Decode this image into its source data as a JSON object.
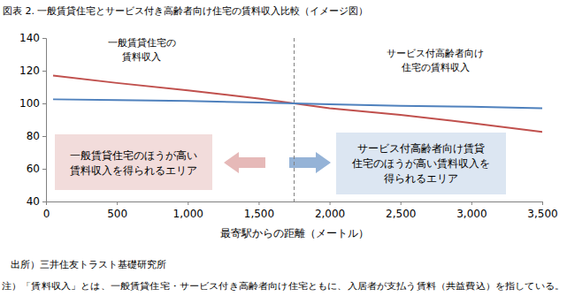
{
  "chart_data": {
    "type": "line",
    "title": "図表 2. 一般賃貸住宅とサービス付き高齢者向け住宅の賃料収入比較（イメージ図）",
    "x_label": "最寄駅からの距離（メートル）",
    "source": "出所）三井住友トラスト基礎研究所",
    "note": "注）「賃料収入」とは、一般賃貸住宅・サービス付き高齢者向け住宅ともに、入居者が支払う賃料（共益費込）を指している。",
    "x": [
      50,
      500,
      1000,
      1500,
      1750,
      2000,
      2500,
      3000,
      3500
    ],
    "series": [
      {
        "color": "#c0504d",
        "values": [
          117,
          112.5,
          108,
          103,
          100,
          97,
          93,
          88,
          82.5
        ]
      },
      {
        "color": "#4f81bd",
        "values": [
          102.5,
          102,
          101.5,
          100.5,
          100,
          99.5,
          98.5,
          98,
          97
        ]
      }
    ],
    "xlim": [
      0,
      3500
    ],
    "xticks": [
      0,
      500,
      {
        "value": 1000,
        "label": "1,000"
      },
      {
        "value": 1500,
        "label": "1,500"
      },
      {
        "value": 2000,
        "label": "2,000"
      },
      {
        "value": 2500,
        "label": "2,500"
      },
      {
        "value": 3000,
        "label": "3,000"
      },
      {
        "value": 3500,
        "label": "3,500"
      }
    ],
    "ylim": [
      40,
      140
    ],
    "yticks": [
      40,
      60,
      80,
      100,
      120,
      140
    ],
    "grid": false,
    "vline_x": 1750,
    "annotations": [
      {
        "lines": [
          "一般賃貸住宅の",
          "賃料収入"
        ]
      },
      {
        "lines": [
          "サービス付高齢者向け",
          "住宅の賃料収入"
        ]
      },
      {
        "lines": [
          "一般賃貸住宅のほうが高い",
          "賃料収入を得られるエリア"
        ]
      },
      {
        "lines": [
          "サービス付高齢者向け賃貸",
          "住宅のほうが高い賃料収入を",
          "得られるエリア"
        ]
      }
    ]
  }
}
